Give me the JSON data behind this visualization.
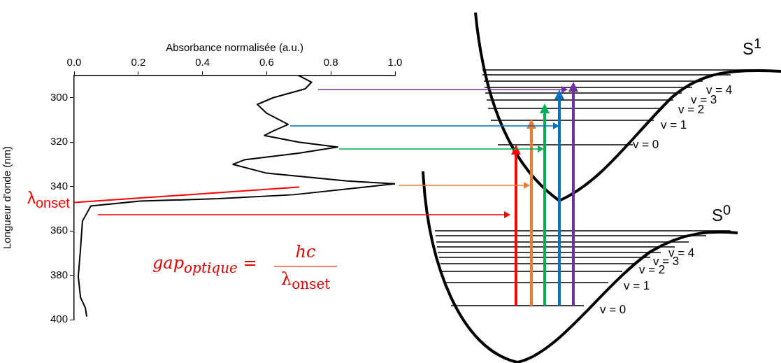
{
  "chart_data": {
    "type": "line",
    "xlabel": "Absorbance normalisée (a.u.)",
    "ylabel": "Longueur d'onde (nm)",
    "xlim": [
      0,
      1
    ],
    "xticks": [
      {
        "value": 0,
        "label": "0.0"
      },
      {
        "value": 0.2,
        "label": "0.2"
      },
      {
        "value": 0.4,
        "label": "0.4"
      },
      {
        "value": 0.6,
        "label": "0.6"
      },
      {
        "value": 0.8,
        "label": "0.8"
      },
      {
        "value": 1,
        "label": "1.0"
      }
    ],
    "ylim": [
      400,
      290
    ],
    "yticks": [
      300,
      320,
      340,
      360,
      380,
      400
    ],
    "grid": false,
    "legend": false,
    "marker": "none",
    "line_style": "solid",
    "series": [
      {
        "color": "#000000",
        "x": [
          0.7,
          0.74,
          0.72,
          0.62,
          0.571,
          0.6,
          0.667,
          0.62,
          0.593,
          0.7,
          0.821,
          0.7,
          0.53,
          0.495,
          0.6,
          0.85,
          1.0,
          0.684,
          0.45,
          0.205,
          0.052,
          0.026,
          0.02,
          0.013,
          0.02,
          0.035,
          0.039
        ],
        "values": [
          290,
          293,
          296,
          300,
          303,
          307,
          312,
          315,
          317,
          320,
          322.2,
          325,
          328,
          330,
          334,
          337.5,
          338.8,
          343.7,
          345.5,
          346.6,
          348.8,
          355.6,
          368,
          380.6,
          390,
          394.7,
          398.4
        ]
      },
      {
        "type": "line",
        "color": "#ff0000",
        "x": [
          0,
          0.7
        ],
        "values": [
          347.2,
          340.3
        ]
      }
    ],
    "annotations": [
      {
        "text": "λ$_{onset}$",
        "x": 0,
        "y": 347.2
      },
      "gap$_{optique}$ =",
      "hc",
      "λ$_{onset}$",
      "S$^{1}$",
      "S$^{0}$",
      "v = 0",
      "v = 1",
      "v = 2",
      "v = 3",
      "v = 4",
      "v = 0",
      "v = 1",
      "v = 2",
      "v = 3",
      "v = 4"
    ]
  }
}
